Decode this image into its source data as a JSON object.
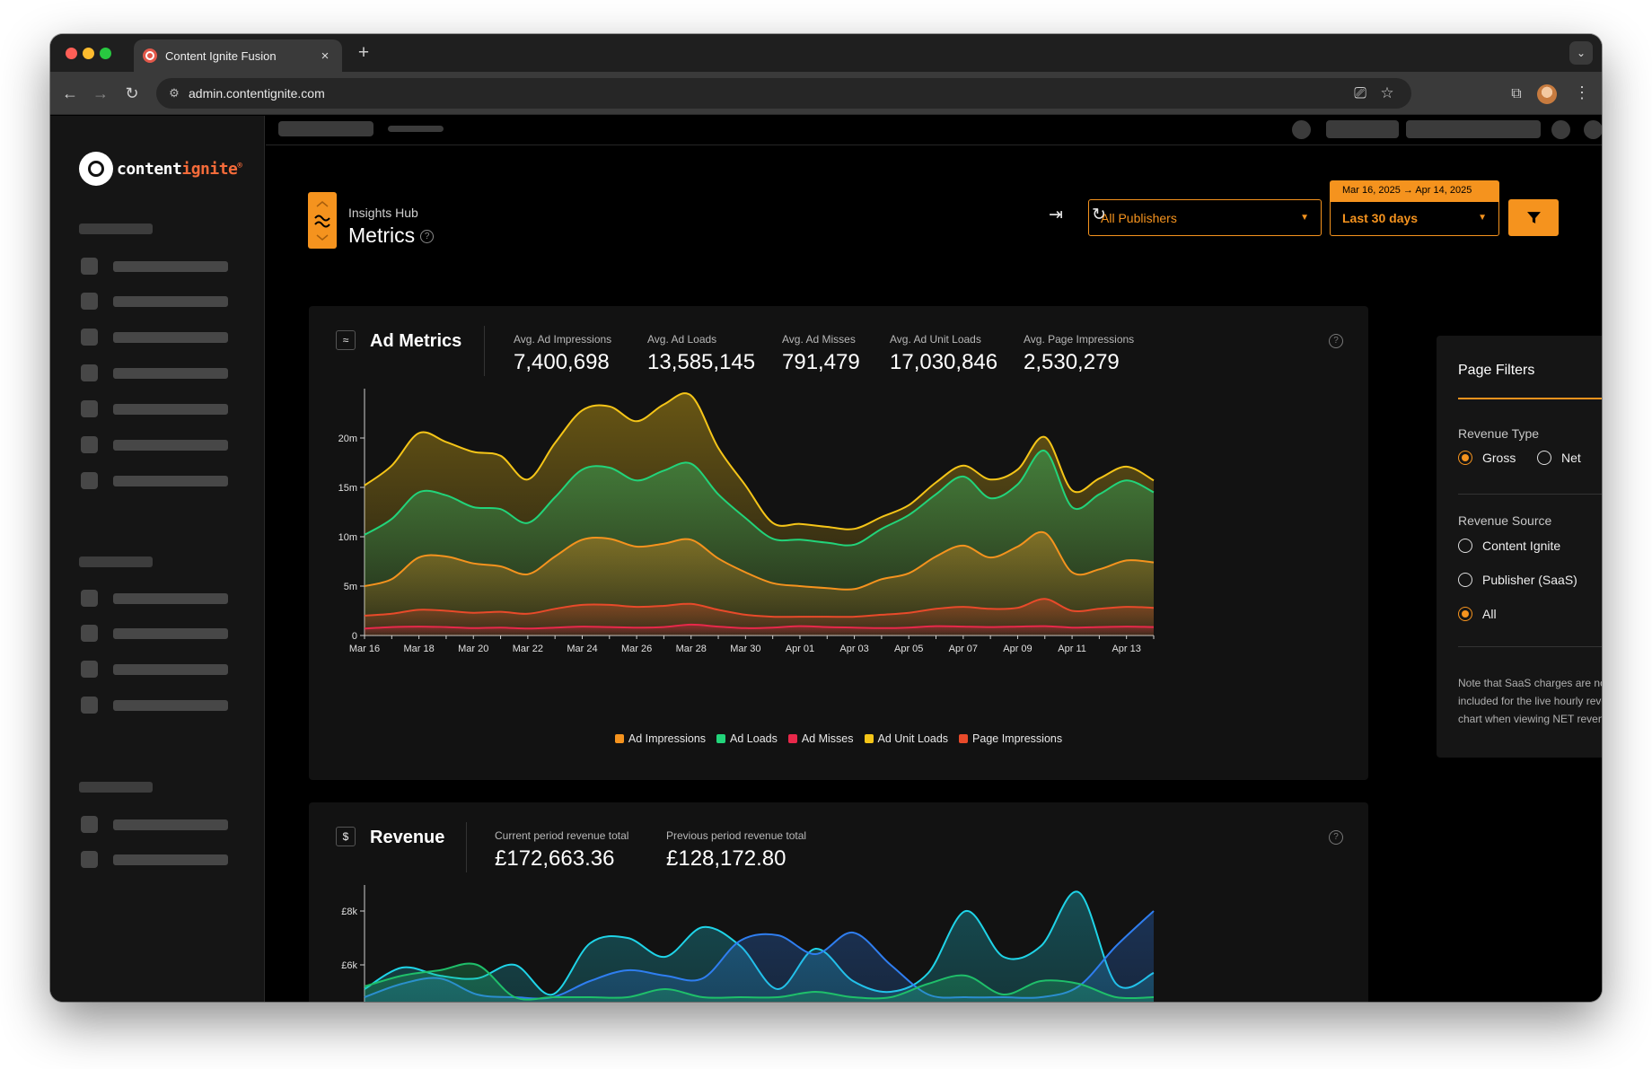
{
  "browser": {
    "tab_title": "Content Ignite Fusion",
    "tab_close": "×",
    "new_tab": "+",
    "url": "admin.contentignite.com",
    "colors": {
      "close": "#ff5f57",
      "minimize": "#febc2e",
      "maximize": "#28c840"
    }
  },
  "brand": {
    "name_prefix": "content",
    "name_accent": "ignite",
    "reg": "®",
    "accent_color": "#f56b3a"
  },
  "header": {
    "subtitle": "Insights Hub",
    "title": "Metrics",
    "help": "?",
    "publisher_select": "All Publishers",
    "date_range_label": "Mar 16, 2025 → Apr 14, 2025",
    "period_select": "Last 30 days",
    "accent_color": "#f5931e"
  },
  "ad_metrics": {
    "title": "Ad Metrics",
    "help": "?",
    "stats": [
      {
        "label": "Avg. Ad Impressions",
        "value": "7,400,698"
      },
      {
        "label": "Avg. Ad Loads",
        "value": "13,585,145"
      },
      {
        "label": "Avg. Ad Misses",
        "value": "791,479"
      },
      {
        "label": "Avg. Ad Unit Loads",
        "value": "17,030,846"
      },
      {
        "label": "Avg. Page Impressions",
        "value": "2,530,279"
      }
    ]
  },
  "revenue": {
    "title": "Revenue",
    "help": "?",
    "stats": [
      {
        "label": "Current period revenue total",
        "value": "£172,663.36"
      },
      {
        "label": "Previous period revenue total",
        "value": "£128,172.80"
      }
    ]
  },
  "page_filters": {
    "title": "Page Filters",
    "revenue_type_label": "Revenue Type",
    "revenue_type_options": [
      {
        "label": "Gross",
        "selected": true
      },
      {
        "label": "Net",
        "selected": false
      }
    ],
    "revenue_source_label": "Revenue Source",
    "revenue_source_options": [
      {
        "label": "Content Ignite",
        "selected": false
      },
      {
        "label": "Publisher (SaaS)",
        "selected": false
      },
      {
        "label": "All",
        "selected": true
      }
    ],
    "note": "Note that SaaS charges are not included for the live hourly revenue chart when viewing NET revenue."
  },
  "chart_data": [
    {
      "type": "area",
      "x": [
        "Mar 16",
        "Mar 17",
        "Mar 18",
        "Mar 19",
        "Mar 20",
        "Mar 21",
        "Mar 22",
        "Mar 23",
        "Mar 24",
        "Mar 25",
        "Mar 26",
        "Mar 27",
        "Mar 28",
        "Mar 29",
        "Mar 30",
        "Mar 31",
        "Apr 01",
        "Apr 02",
        "Apr 03",
        "Apr 04",
        "Apr 05",
        "Apr 06",
        "Apr 07",
        "Apr 08",
        "Apr 09",
        "Apr 10",
        "Apr 11",
        "Apr 12",
        "Apr 13",
        "Apr 14"
      ],
      "x_tick_labels": [
        "Mar 16",
        "Mar 18",
        "Mar 20",
        "Mar 22",
        "Mar 24",
        "Mar 26",
        "Mar 28",
        "Mar 30",
        "Apr 01",
        "Apr 03",
        "Apr 05",
        "Apr 07",
        "Apr 09",
        "Apr 11",
        "Apr 13"
      ],
      "y_tick_labels": [
        "0",
        "5m",
        "10m",
        "15m",
        "20m"
      ],
      "ylim": [
        0,
        25000000
      ],
      "series": [
        {
          "name": "Ad Unit Loads",
          "color": "#f5c518",
          "values": [
            15200000,
            17200000,
            20500000,
            19600000,
            18600000,
            18200000,
            15800000,
            19500000,
            22800000,
            23200000,
            21700000,
            23400000,
            24300000,
            19000000,
            15200000,
            11400000,
            11300000,
            11000000,
            10800000,
            12000000,
            13200000,
            15500000,
            17200000,
            15800000,
            16800000,
            20100000,
            14700000,
            15900000,
            17100000,
            15700000
          ]
        },
        {
          "name": "Ad Loads",
          "color": "#22d47a",
          "values": [
            10200000,
            11800000,
            14500000,
            14200000,
            13000000,
            12800000,
            11400000,
            14000000,
            16800000,
            17000000,
            15700000,
            16700000,
            17400000,
            14300000,
            11900000,
            9800000,
            9700000,
            9400000,
            9200000,
            10800000,
            12200000,
            14300000,
            16100000,
            13900000,
            15300000,
            18700000,
            13000000,
            14300000,
            15700000,
            14500000
          ]
        },
        {
          "name": "Ad Impressions",
          "color": "#f5931e",
          "values": [
            5000000,
            5700000,
            7900000,
            8000000,
            7300000,
            7000000,
            6200000,
            8000000,
            9700000,
            9800000,
            9000000,
            9300000,
            9700000,
            7800000,
            6400000,
            5300000,
            5000000,
            4800000,
            4700000,
            5700000,
            6300000,
            8000000,
            9100000,
            7900000,
            9000000,
            10400000,
            6400000,
            6700000,
            7600000,
            7400000
          ]
        },
        {
          "name": "Page Impressions",
          "color": "#e84a2a",
          "values": [
            2000000,
            2200000,
            2600000,
            2500000,
            2300000,
            2400000,
            2200000,
            2700000,
            3100000,
            3100000,
            2900000,
            3000000,
            3200000,
            2600000,
            2100000,
            1900000,
            1900000,
            1900000,
            1900000,
            2100000,
            2300000,
            2700000,
            2900000,
            2700000,
            2800000,
            3700000,
            2500000,
            2700000,
            2900000,
            2800000
          ]
        },
        {
          "name": "Ad Misses",
          "color": "#e8284a",
          "values": [
            700000,
            850000,
            900000,
            850000,
            750000,
            800000,
            700000,
            800000,
            900000,
            850000,
            800000,
            850000,
            1100000,
            900000,
            750000,
            800000,
            950000,
            850000,
            800000,
            750000,
            800000,
            950000,
            900000,
            850000,
            900000,
            950000,
            800000,
            850000,
            900000,
            850000
          ]
        }
      ]
    },
    {
      "type": "area",
      "y_tick_labels": [
        "£6k",
        "£8k"
      ],
      "ylim": [
        4800,
        9200
      ],
      "series": [
        {
          "name": "",
          "color": "#1fd4e8",
          "values": [
            5100,
            5900,
            5600,
            5500,
            6000,
            4900,
            6800,
            7000,
            6300,
            7400,
            6700,
            5100,
            6600,
            5400,
            5000,
            5700,
            8000,
            6300,
            6700,
            8700,
            5300,
            5700
          ]
        },
        {
          "name": "",
          "color": "#2f7ef0",
          "values": [
            4800,
            5300,
            5500,
            4900,
            4800,
            4800,
            5400,
            5800,
            5600,
            5500,
            6900,
            7100,
            6400,
            7200,
            6000,
            4900,
            4800,
            4800,
            4800,
            5200,
            6700,
            8000
          ]
        },
        {
          "name": "",
          "color": "#1fbf6a",
          "values": [
            5200,
            5600,
            5800,
            6000,
            4800,
            4800,
            4800,
            4800,
            5100,
            4800,
            4800,
            4800,
            5000,
            4800,
            4800,
            5300,
            5600,
            4900,
            5400,
            5300,
            4800,
            4800
          ]
        }
      ]
    }
  ]
}
